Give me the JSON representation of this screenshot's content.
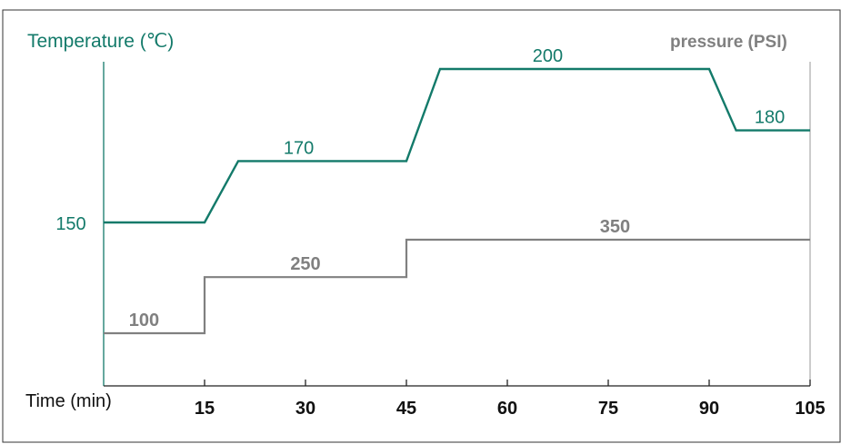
{
  "chart_data": {
    "type": "line",
    "x": [
      0,
      15,
      20,
      45,
      50,
      90,
      94,
      105
    ],
    "x_ticks": [
      "15",
      "30",
      "45",
      "60",
      "75",
      "90",
      "105"
    ],
    "x_tick_values": [
      15,
      30,
      45,
      60,
      75,
      90,
      105
    ],
    "xlabel": "Time (min)",
    "ylabel_left": "Temperature (℃)",
    "ylabel_right": "pressure (PSI)",
    "xlim": [
      0,
      105
    ],
    "series": [
      {
        "name": "Temperature (℃)",
        "color": "#137a6a",
        "points": [
          [
            0,
            150
          ],
          [
            15,
            150
          ],
          [
            20,
            170
          ],
          [
            45,
            170
          ],
          [
            50,
            200
          ],
          [
            90,
            200
          ],
          [
            94,
            180
          ],
          [
            105,
            180
          ]
        ],
        "labels": [
          {
            "x": 3,
            "y": 150,
            "text": "150",
            "side": "left"
          },
          {
            "x": 29,
            "y": 170,
            "text": "170"
          },
          {
            "x": 66,
            "y": 200,
            "text": "200"
          },
          {
            "x": 99,
            "y": 180,
            "text": "180"
          }
        ],
        "ylim": [
          130,
          205
        ]
      },
      {
        "name": "pressure (PSI)",
        "color": "#808080",
        "points": [
          [
            0,
            100
          ],
          [
            15,
            100
          ],
          [
            15,
            250
          ],
          [
            45,
            250
          ],
          [
            45,
            350
          ],
          [
            105,
            350
          ]
        ],
        "labels": [
          {
            "x": 6,
            "y": 100,
            "text": "100"
          },
          {
            "x": 30,
            "y": 250,
            "text": "250"
          },
          {
            "x": 76,
            "y": 350,
            "text": "350"
          }
        ],
        "ylim": [
          0,
          420
        ]
      }
    ],
    "grid": false
  }
}
